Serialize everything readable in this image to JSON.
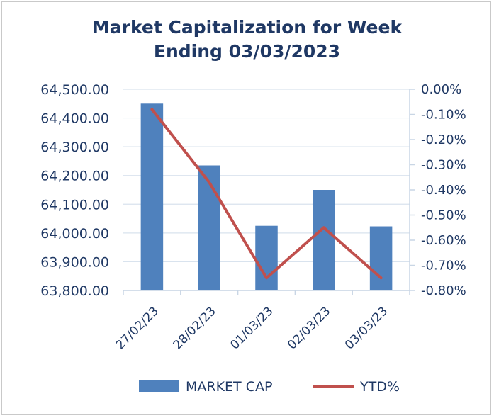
{
  "chart_data": {
    "type": "bar",
    "title_lines": [
      "Market Capitalization for Week",
      "Ending 03/03/2023"
    ],
    "categories": [
      "27/02/23",
      "28/02/23",
      "01/03/23",
      "02/03/23",
      "03/03/23"
    ],
    "series": [
      {
        "name": "MARKET CAP",
        "type": "bar",
        "axis": "left",
        "color": "#4f81bd",
        "values": [
          64450,
          64235,
          64025,
          64150,
          64023
        ]
      },
      {
        "name": "YTD%",
        "type": "line",
        "axis": "right",
        "color": "#c0504d",
        "values": [
          -0.08,
          -0.37,
          -0.75,
          -0.55,
          -0.75
        ]
      }
    ],
    "left_axis": {
      "ylim": [
        63800,
        64500
      ],
      "ticks": [
        64500,
        64400,
        64300,
        64200,
        64100,
        64000,
        63900,
        63800
      ],
      "tick_labels": [
        "64,500.00",
        "64,400.00",
        "64,300.00",
        "64,200.00",
        "64,100.00",
        "64,000.00",
        "63,900.00",
        "63,800.00"
      ]
    },
    "right_axis": {
      "ylim": [
        -0.8,
        0.0
      ],
      "ticks": [
        0.0,
        -0.1,
        -0.2,
        -0.3,
        -0.4,
        -0.5,
        -0.6,
        -0.7,
        -0.8
      ],
      "tick_labels": [
        "0.00%",
        "-0.10%",
        "-0.20%",
        "-0.30%",
        "-0.40%",
        "-0.50%",
        "-0.60%",
        "-0.70%",
        "-0.80%"
      ]
    },
    "grid": true,
    "legend_position": "bottom"
  }
}
